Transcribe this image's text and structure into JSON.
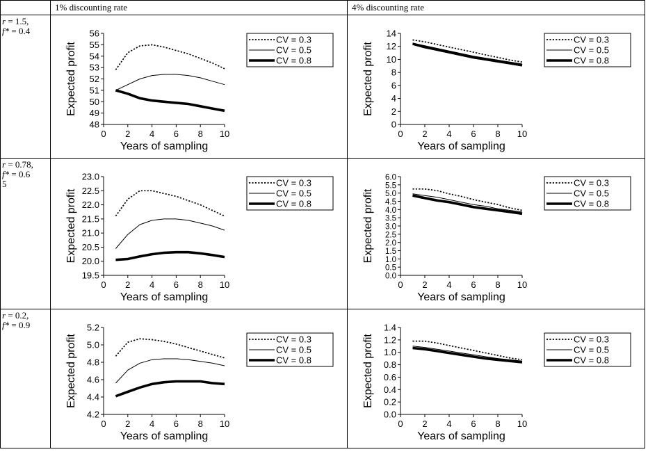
{
  "header": {
    "col1": "1% discounting rate",
    "col2": "4% discounting rate"
  },
  "rows": [
    {
      "r_label": "r",
      "r_eq": " = 1.5,",
      "f_label": "f*",
      "f_eq": " = 0.4",
      "f_wrap": ""
    },
    {
      "r_label": "r",
      "r_eq": " = 0.78,",
      "f_label": "f*",
      "f_eq": " = 0.6",
      "f_wrap": "5"
    },
    {
      "r_label": "r",
      "r_eq": " = 0.2,",
      "f_label": "f*",
      "f_eq": " = 0.9",
      "f_wrap": ""
    }
  ],
  "chart_data": [
    {
      "type": "line",
      "row": 0,
      "col": 0,
      "xlabel": "Years of sampling",
      "ylabel": "Expected profit",
      "xlim": [
        0,
        10
      ],
      "ylim": [
        48,
        56
      ],
      "xticks": [
        0,
        2,
        4,
        6,
        8,
        10
      ],
      "yticks": [
        48,
        49,
        50,
        51,
        52,
        53,
        54,
        55,
        56
      ],
      "ytick_labels": [
        "48",
        "49",
        "50",
        "51",
        "52",
        "53",
        "54",
        "55",
        "56"
      ],
      "legend": "top-right",
      "x": [
        1,
        2,
        3,
        4,
        5,
        6,
        7,
        8,
        9,
        10
      ],
      "series": [
        {
          "name": "CV = 0.3",
          "style": "dotted",
          "values": [
            52.8,
            54.3,
            54.9,
            55.0,
            54.8,
            54.5,
            54.2,
            53.8,
            53.4,
            52.9
          ]
        },
        {
          "name": "CV = 0.5",
          "style": "thin",
          "values": [
            51.0,
            51.5,
            52.0,
            52.3,
            52.4,
            52.4,
            52.3,
            52.1,
            51.8,
            51.5
          ]
        },
        {
          "name": "CV = 0.8",
          "style": "thick",
          "values": [
            51.0,
            50.7,
            50.3,
            50.1,
            50.0,
            49.9,
            49.8,
            49.6,
            49.4,
            49.2
          ]
        }
      ]
    },
    {
      "type": "line",
      "row": 0,
      "col": 1,
      "xlabel": "Years of sampling",
      "ylabel": "Expected profit",
      "xlim": [
        0,
        10
      ],
      "ylim": [
        0,
        14
      ],
      "xticks": [
        0,
        2,
        4,
        6,
        8,
        10
      ],
      "yticks": [
        0,
        2,
        4,
        6,
        8,
        10,
        12,
        14
      ],
      "ytick_labels": [
        "0",
        "2",
        "4",
        "6",
        "8",
        "10",
        "12",
        "14"
      ],
      "legend": "top-right",
      "x": [
        1,
        2,
        3,
        4,
        5,
        6,
        7,
        8,
        9,
        10
      ],
      "series": [
        {
          "name": "CV = 0.3",
          "style": "dotted",
          "values": [
            13.0,
            12.7,
            12.3,
            11.9,
            11.5,
            11.1,
            10.7,
            10.3,
            9.9,
            9.6
          ]
        },
        {
          "name": "CV = 0.5",
          "style": "thin",
          "values": [
            12.5,
            12.1,
            11.7,
            11.3,
            10.9,
            10.5,
            10.2,
            9.9,
            9.6,
            9.3
          ]
        },
        {
          "name": "CV = 0.8",
          "style": "thick",
          "values": [
            12.4,
            11.9,
            11.5,
            11.1,
            10.7,
            10.3,
            10.0,
            9.7,
            9.4,
            9.1
          ]
        }
      ]
    },
    {
      "type": "line",
      "row": 1,
      "col": 0,
      "xlabel": "Years of sampling",
      "ylabel": "Expected profit",
      "xlim": [
        0,
        10
      ],
      "ylim": [
        19.5,
        23.0
      ],
      "xticks": [
        0,
        2,
        4,
        6,
        8,
        10
      ],
      "yticks": [
        19.5,
        20.0,
        20.5,
        21.0,
        21.5,
        22.0,
        22.5,
        23.0
      ],
      "ytick_labels": [
        "19.5",
        "20.0",
        "20.5",
        "21.0",
        "21.5",
        "22.0",
        "22.5",
        "23.0"
      ],
      "legend": "top-right",
      "x": [
        1,
        2,
        3,
        4,
        5,
        6,
        7,
        8,
        9,
        10
      ],
      "series": [
        {
          "name": "CV = 0.3",
          "style": "dotted",
          "values": [
            21.6,
            22.2,
            22.5,
            22.5,
            22.4,
            22.3,
            22.15,
            22.0,
            21.8,
            21.6
          ]
        },
        {
          "name": "CV = 0.5",
          "style": "thin",
          "values": [
            20.45,
            20.95,
            21.3,
            21.45,
            21.5,
            21.5,
            21.45,
            21.35,
            21.25,
            21.1
          ]
        },
        {
          "name": "CV = 0.8",
          "style": "thick",
          "values": [
            20.05,
            20.08,
            20.17,
            20.25,
            20.3,
            20.32,
            20.32,
            20.28,
            20.22,
            20.15
          ]
        }
      ]
    },
    {
      "type": "line",
      "row": 1,
      "col": 1,
      "xlabel": "Years of sampling",
      "ylabel": "Expected profit",
      "xlim": [
        0,
        10
      ],
      "ylim": [
        0,
        6
      ],
      "xticks": [
        0,
        2,
        4,
        6,
        8,
        10
      ],
      "yticks": [
        0,
        0.5,
        1,
        1.5,
        2,
        2.5,
        3,
        3.5,
        4,
        4.5,
        5,
        5.5,
        6
      ],
      "ytick_labels": [
        "0.0",
        "0.5",
        "1.0",
        "1.5",
        "2.0",
        "2.5",
        "3.0",
        "3.5",
        "4.0",
        "4.5",
        "5.0",
        "5.5",
        "6.0"
      ],
      "legend": "top-right",
      "x": [
        1,
        2,
        3,
        4,
        5,
        6,
        7,
        8,
        9,
        10
      ],
      "series": [
        {
          "name": "CV = 0.3",
          "style": "dotted",
          "values": [
            5.25,
            5.25,
            5.15,
            4.95,
            4.8,
            4.6,
            4.45,
            4.3,
            4.1,
            3.95
          ]
        },
        {
          "name": "CV = 0.5",
          "style": "thin",
          "values": [
            4.95,
            4.85,
            4.75,
            4.6,
            4.45,
            4.3,
            4.2,
            4.05,
            3.95,
            3.85
          ]
        },
        {
          "name": "CV = 0.8",
          "style": "thick",
          "values": [
            4.85,
            4.7,
            4.55,
            4.45,
            4.3,
            4.15,
            4.05,
            3.95,
            3.85,
            3.75
          ]
        }
      ]
    },
    {
      "type": "line",
      "row": 2,
      "col": 0,
      "xlabel": "Years of sampling",
      "ylabel": "Expected profit",
      "xlim": [
        0,
        10
      ],
      "ylim": [
        4.2,
        5.2
      ],
      "xticks": [
        0,
        2,
        4,
        6,
        8,
        10
      ],
      "yticks": [
        4.2,
        4.4,
        4.6,
        4.8,
        5.0,
        5.2
      ],
      "ytick_labels": [
        "4.2",
        "4.4",
        "4.6",
        "4.8",
        "5.0",
        "5.2"
      ],
      "legend": "top-right",
      "x": [
        1,
        2,
        3,
        4,
        5,
        6,
        7,
        8,
        9,
        10
      ],
      "series": [
        {
          "name": "CV = 0.3",
          "style": "dotted",
          "values": [
            4.87,
            5.03,
            5.07,
            5.06,
            5.04,
            5.01,
            4.97,
            4.93,
            4.89,
            4.85
          ]
        },
        {
          "name": "CV = 0.5",
          "style": "thin",
          "values": [
            4.56,
            4.71,
            4.79,
            4.83,
            4.84,
            4.84,
            4.83,
            4.81,
            4.79,
            4.76
          ]
        },
        {
          "name": "CV = 0.8",
          "style": "thick",
          "values": [
            4.41,
            4.46,
            4.51,
            4.55,
            4.57,
            4.58,
            4.58,
            4.58,
            4.56,
            4.55
          ]
        }
      ]
    },
    {
      "type": "line",
      "row": 2,
      "col": 1,
      "xlabel": "Years of sampling",
      "ylabel": "Expected profit",
      "xlim": [
        0,
        10
      ],
      "ylim": [
        0,
        1.4
      ],
      "xticks": [
        0,
        2,
        4,
        6,
        8,
        10
      ],
      "yticks": [
        0,
        0.2,
        0.4,
        0.6,
        0.8,
        1.0,
        1.2,
        1.4
      ],
      "ytick_labels": [
        "0.0",
        "0.2",
        "0.4",
        "0.6",
        "0.8",
        "1.0",
        "1.2",
        "1.4"
      ],
      "legend": "top-right",
      "x": [
        1,
        2,
        3,
        4,
        5,
        6,
        7,
        8,
        9,
        10
      ],
      "series": [
        {
          "name": "CV = 0.3",
          "style": "dotted",
          "values": [
            1.18,
            1.18,
            1.15,
            1.11,
            1.07,
            1.03,
            0.99,
            0.95,
            0.91,
            0.88
          ]
        },
        {
          "name": "CV = 0.5",
          "style": "thin",
          "values": [
            1.1,
            1.08,
            1.05,
            1.02,
            0.99,
            0.96,
            0.93,
            0.9,
            0.88,
            0.86
          ]
        },
        {
          "name": "CV = 0.8",
          "style": "thick",
          "values": [
            1.07,
            1.05,
            1.02,
            0.99,
            0.96,
            0.93,
            0.9,
            0.88,
            0.86,
            0.84
          ]
        }
      ]
    }
  ]
}
